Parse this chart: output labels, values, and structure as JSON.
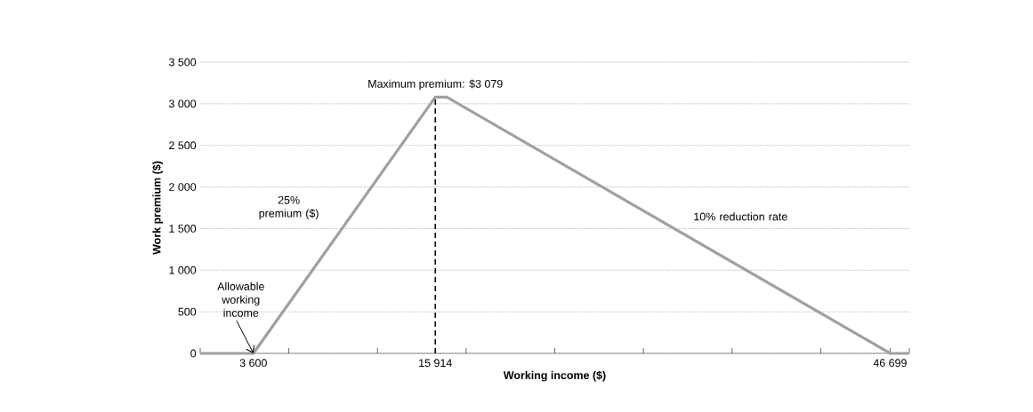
{
  "chart_data": {
    "type": "line",
    "xlabel": "Working income ($)",
    "ylabel": "Work premium ($)",
    "x": [
      0,
      3600,
      15914,
      16700,
      46699,
      48000
    ],
    "series": [
      {
        "color": "#a0a0a0",
        "values": [
          0,
          0,
          3079,
          3079,
          0,
          0
        ]
      }
    ],
    "xlim": [
      0,
      48000
    ],
    "xticks": [
      {
        "value": 0,
        "label": null
      },
      {
        "value": 3600,
        "label": "3 600"
      },
      {
        "value": 6000,
        "label": null
      },
      {
        "value": 12000,
        "label": null
      },
      {
        "value": 15914,
        "label": "15 914"
      },
      {
        "value": 18000,
        "label": null
      },
      {
        "value": 24000,
        "label": null
      },
      {
        "value": 30000,
        "label": null
      },
      {
        "value": 36000,
        "label": null
      },
      {
        "value": 42000,
        "label": null
      },
      {
        "value": 46699,
        "label": "46 699"
      },
      {
        "value": 48000,
        "label": null
      }
    ],
    "ylim": [
      0,
      3500
    ],
    "yticks": [
      {
        "value": 0,
        "label": "0"
      },
      {
        "value": 500,
        "label": "500"
      },
      {
        "value": 1000,
        "label": "1 000"
      },
      {
        "value": 1500,
        "label": "1 500"
      },
      {
        "value": 2000,
        "label": "2 000"
      },
      {
        "value": 2500,
        "label": "2 500"
      },
      {
        "value": 3000,
        "label": "3 000"
      },
      {
        "value": 3500,
        "label": "3 500"
      }
    ],
    "grid": "y",
    "marker": "none",
    "line_style": "solid",
    "ref_lines": [
      {
        "axis": "x",
        "value": 15914,
        "color": "#000000",
        "line_style": "dashed"
      }
    ],
    "annotations": [
      {
        "text": "Maximum premium: $3 079",
        "x": 15914,
        "y": 3079
      },
      "25% premium ($)",
      "10% reduction rate",
      {
        "text": "Allowable working income",
        "x": 3600,
        "y": 0
      }
    ]
  }
}
